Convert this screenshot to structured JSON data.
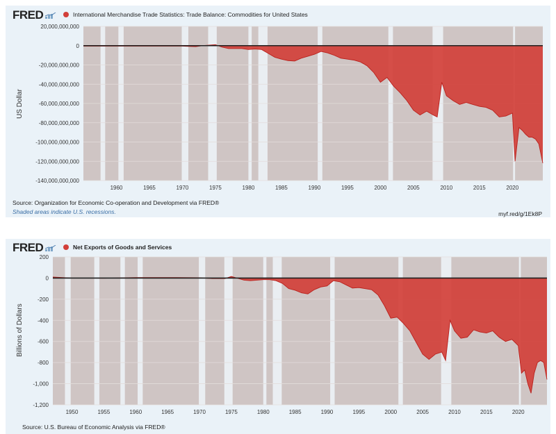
{
  "chart_data": [
    {
      "type": "area",
      "logo": "FRED",
      "title": "International Merchandise Trade Statistics: Trade Balance: Commodities for United States",
      "ylabel": "US Dollar",
      "xlim": [
        1955.0,
        2024.6
      ],
      "ylim": [
        -140000000000,
        20000000000
      ],
      "yticks": [
        20000000000,
        0,
        -20000000000,
        -40000000000,
        -60000000000,
        -80000000000,
        -100000000000,
        -120000000000,
        -140000000000
      ],
      "ytick_labels": [
        "20,000,000,000",
        "0",
        "-20,000,000,000",
        "-40,000,000,000",
        "-60,000,000,000",
        "-80,000,000,000",
        "-100,000,000,000",
        "-120,000,000,000",
        "-140,000,000,000"
      ],
      "xticks": [
        1960,
        1965,
        1970,
        1975,
        1980,
        1985,
        1990,
        1995,
        2000,
        2005,
        2010,
        2015,
        2020
      ],
      "recessions": [
        [
          1957.6,
          1958.3
        ],
        [
          1960.3,
          1961.1
        ],
        [
          1969.9,
          1970.9
        ],
        [
          1973.9,
          1975.2
        ],
        [
          1980.0,
          1980.5
        ],
        [
          1981.5,
          1982.9
        ],
        [
          1990.5,
          1991.2
        ],
        [
          2001.2,
          2001.9
        ],
        [
          2007.9,
          2009.5
        ],
        [
          2020.1,
          2020.4
        ]
      ],
      "x": [
        1955.0,
        1960.0,
        1965.0,
        1970.0,
        1972.0,
        1973.0,
        1975.0,
        1976.0,
        1977.0,
        1978.0,
        1979.0,
        1980.0,
        1981.0,
        1982.0,
        1983.0,
        1984.0,
        1985.0,
        1986.0,
        1987.0,
        1988.0,
        1989.0,
        1990.0,
        1991.0,
        1992.0,
        1993.0,
        1994.0,
        1995.0,
        1996.0,
        1997.0,
        1998.0,
        1999.0,
        2000.0,
        2001.0,
        2002.0,
        2003.0,
        2004.0,
        2005.0,
        2006.0,
        2007.0,
        2008.0,
        2008.6,
        2009.3,
        2010.0,
        2011.0,
        2012.0,
        2013.0,
        2014.0,
        2015.0,
        2016.0,
        2017.0,
        2018.0,
        2019.0,
        2020.0,
        2020.4,
        2021.0,
        2021.5,
        2022.0,
        2022.5,
        2023.0,
        2023.5,
        2024.0,
        2024.6
      ],
      "y": [
        -500000000,
        -500000000,
        -500000000,
        -500000000,
        -1000000000,
        0,
        1000000000,
        -1500000000,
        -3000000000,
        -3000000000,
        -3000000000,
        -4000000000,
        -3500000000,
        -4000000000,
        -8000000000,
        -12000000000,
        -14000000000,
        -15500000000,
        -16000000000,
        -13000000000,
        -11000000000,
        -9000000000,
        -6000000000,
        -7500000000,
        -10000000000,
        -13000000000,
        -14000000000,
        -15000000000,
        -17000000000,
        -21000000000,
        -28000000000,
        -38000000000,
        -33000000000,
        -42000000000,
        -49000000000,
        -57000000000,
        -67000000000,
        -72000000000,
        -68000000000,
        -72000000000,
        -74000000000,
        -38000000000,
        -52000000000,
        -57000000000,
        -61000000000,
        -59000000000,
        -61000000000,
        -63000000000,
        -64000000000,
        -67000000000,
        -74000000000,
        -73000000000,
        -70000000000,
        -120000000000,
        -85000000000,
        -88000000000,
        -92000000000,
        -95000000000,
        -95000000000,
        -97000000000,
        -102000000000,
        -122000000000
      ],
      "source": "Source: Organization for Economic Co-operation and Development via FRED®",
      "note": "Shaded areas indicate U.S. recessions.",
      "shortlink": "myf.red/g/1Ek8P"
    },
    {
      "type": "area",
      "logo": "FRED",
      "title": "Net Exports of Goods and Services",
      "ylabel": "Billions of Dollars",
      "xlim": [
        1947.0,
        2024.5
      ],
      "ylim": [
        -1200,
        200
      ],
      "yticks": [
        200,
        0,
        -200,
        -400,
        -600,
        -800,
        -1000,
        -1200
      ],
      "ytick_labels": [
        "200",
        "0",
        "-200",
        "-400",
        "-600",
        "-800",
        "-1,000",
        "-1,200"
      ],
      "xticks": [
        1950,
        1955,
        1960,
        1965,
        1970,
        1975,
        1980,
        1985,
        1990,
        1995,
        2000,
        2005,
        2010,
        2015,
        2020
      ],
      "recessions": [
        [
          1948.9,
          1949.8
        ],
        [
          1953.5,
          1954.3
        ],
        [
          1957.6,
          1958.3
        ],
        [
          1960.3,
          1961.1
        ],
        [
          1969.9,
          1970.9
        ],
        [
          1973.9,
          1975.2
        ],
        [
          1980.0,
          1980.5
        ],
        [
          1981.5,
          1982.9
        ],
        [
          1990.5,
          1991.2
        ],
        [
          2001.2,
          2001.9
        ],
        [
          2007.9,
          2009.5
        ],
        [
          2020.1,
          2020.4
        ]
      ],
      "x": [
        1947.0,
        1950.0,
        1955.0,
        1960.0,
        1965.0,
        1970.0,
        1972.0,
        1974.0,
        1975.0,
        1977.0,
        1978.0,
        1979.0,
        1980.0,
        1981.0,
        1982.0,
        1983.0,
        1984.0,
        1985.0,
        1986.0,
        1987.0,
        1988.0,
        1989.0,
        1990.0,
        1991.0,
        1992.0,
        1993.0,
        1994.0,
        1995.0,
        1996.0,
        1997.0,
        1998.0,
        1999.0,
        2000.0,
        2001.0,
        2002.0,
        2003.0,
        2004.0,
        2005.0,
        2006.0,
        2007.0,
        2008.0,
        2008.6,
        2009.3,
        2010.0,
        2011.0,
        2012.0,
        2013.0,
        2014.0,
        2015.0,
        2016.0,
        2017.0,
        2018.0,
        2019.0,
        2020.0,
        2020.5,
        2021.0,
        2021.5,
        2022.0,
        2022.5,
        2023.0,
        2023.5,
        2024.0,
        2024.5
      ],
      "y": [
        10,
        0,
        -2,
        5,
        5,
        3,
        -5,
        -5,
        15,
        -20,
        -25,
        -20,
        -15,
        -15,
        -25,
        -50,
        -100,
        -115,
        -140,
        -150,
        -110,
        -85,
        -75,
        -25,
        -35,
        -65,
        -95,
        -90,
        -100,
        -110,
        -160,
        -260,
        -380,
        -370,
        -430,
        -500,
        -610,
        -720,
        -770,
        -720,
        -700,
        -780,
        -400,
        -500,
        -570,
        -560,
        -490,
        -510,
        -520,
        -500,
        -560,
        -600,
        -580,
        -640,
        -900,
        -870,
        -1000,
        -1090,
        -900,
        -800,
        -780,
        -800,
        -960
      ],
      "source": "Source: U.S. Bureau of Economic Analysis via FRED®"
    }
  ],
  "colors": {
    "area_fill": "#d2403a",
    "area_stroke": "#b9201c",
    "plot_bg": "#cfc5c4",
    "recession": "#eaeef2",
    "zero_line": "#1f1f1f",
    "legend_dot": "#d2403a",
    "panel_bg": "#eaf2f8",
    "note_text": "#3a6ea5"
  },
  "icons": {
    "logo_mark": "fred-chart-mark-icon",
    "legend": "legend-dot-icon"
  }
}
